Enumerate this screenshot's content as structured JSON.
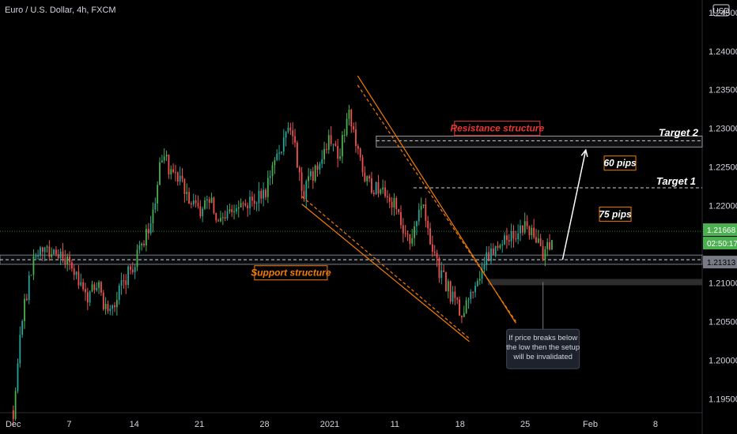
{
  "header": {
    "title": "Euro / U.S. Dollar, 4h, FXCM",
    "currency_badge": "USD"
  },
  "colors": {
    "up": "#26a69a",
    "upBright": "#4caf50",
    "down": "#ef5350",
    "bg": "#000000",
    "orange": "#f57c00",
    "red": "#e53935",
    "axis": "#d1d4dc"
  },
  "chart_data": {
    "type": "candlestick",
    "symbol": "EURUSD",
    "timeframe": "4h",
    "ylim": [
      1.1935,
      1.2458
    ],
    "y_ticks": [
      "1.24000",
      "1.23500",
      "1.23000",
      "1.22500",
      "1.22000",
      "1.21000",
      "1.20500",
      "1.20000",
      "1.19500"
    ],
    "y_top_tick_partial": "1.24500",
    "x_ticks": [
      "Dec",
      "7",
      "14",
      "21",
      "28",
      "2021",
      "11",
      "18",
      "25",
      "Feb",
      "8"
    ],
    "x_tick_dates": [
      "2020-12-01",
      "2020-12-07",
      "2020-12-14",
      "2020-12-21",
      "2020-12-28",
      "2021-01-04",
      "2021-01-11",
      "2021-01-18",
      "2021-01-25",
      "2021-02-01",
      "2021-02-08"
    ],
    "price_tags": {
      "last": "1.21668",
      "countdown": "02:50:17",
      "level": "1.21313"
    },
    "levels": {
      "current": 1.21668,
      "support_zone": [
        1.2124,
        1.2136
      ],
      "target_1": 1.2223,
      "target_2": 1.2284,
      "resistance_zone": [
        1.2282,
        1.229
      ],
      "invalidation_low": 1.2101
    },
    "ohlc_path": [
      [
        "2020-12-01",
        1.1935
      ],
      [
        "2020-12-02",
        1.206
      ],
      [
        "2020-12-03",
        1.212
      ],
      [
        "2020-12-04",
        1.2148
      ],
      [
        "2020-12-07",
        1.2122
      ],
      [
        "2020-12-08",
        1.2108
      ],
      [
        "2020-12-09",
        1.2085
      ],
      [
        "2020-12-10",
        1.2098
      ],
      [
        "2020-12-11",
        1.206
      ],
      [
        "2020-12-14",
        1.2125
      ],
      [
        "2020-12-15",
        1.215
      ],
      [
        "2020-12-16",
        1.2195
      ],
      [
        "2020-12-17",
        1.2265
      ],
      [
        "2020-12-18",
        1.2245
      ],
      [
        "2020-12-21",
        1.219
      ],
      [
        "2020-12-22",
        1.2215
      ],
      [
        "2020-12-23",
        1.2175
      ],
      [
        "2020-12-24",
        1.2192
      ],
      [
        "2020-12-28",
        1.2215
      ],
      [
        "2020-12-29",
        1.2262
      ],
      [
        "2020-12-30",
        1.2285
      ],
      [
        "2020-12-31",
        1.23
      ],
      [
        "2021-01-01",
        1.221
      ],
      [
        "2021-01-04",
        1.2285
      ],
      [
        "2021-01-05",
        1.226
      ],
      [
        "2021-01-06",
        1.233
      ],
      [
        "2021-01-07",
        1.2265
      ],
      [
        "2021-01-08",
        1.223
      ],
      [
        "2021-01-11",
        1.2205
      ],
      [
        "2021-01-12",
        1.2155
      ],
      [
        "2021-01-13",
        1.216
      ],
      [
        "2021-01-14",
        1.2215
      ],
      [
        "2021-01-15",
        1.2135
      ],
      [
        "2021-01-18",
        1.206
      ],
      [
        "2021-01-19",
        1.2085
      ],
      [
        "2021-01-20",
        1.211
      ],
      [
        "2021-01-21",
        1.2135
      ],
      [
        "2021-01-22",
        1.2145
      ],
      [
        "2021-01-25",
        1.2175
      ],
      [
        "2021-01-26",
        1.2165
      ],
      [
        "2021-01-27",
        1.213
      ],
      [
        "2021-01-28",
        1.2166
      ]
    ]
  },
  "annotations": {
    "resistance": "Resistance structure",
    "support": "Support structure",
    "target1": "Target 1",
    "target2": "Target 2",
    "pips60": "60 pips",
    "pips75": "75 pips",
    "note": [
      "If price breaks below",
      "the low then the setup",
      "will be invalidated"
    ]
  }
}
